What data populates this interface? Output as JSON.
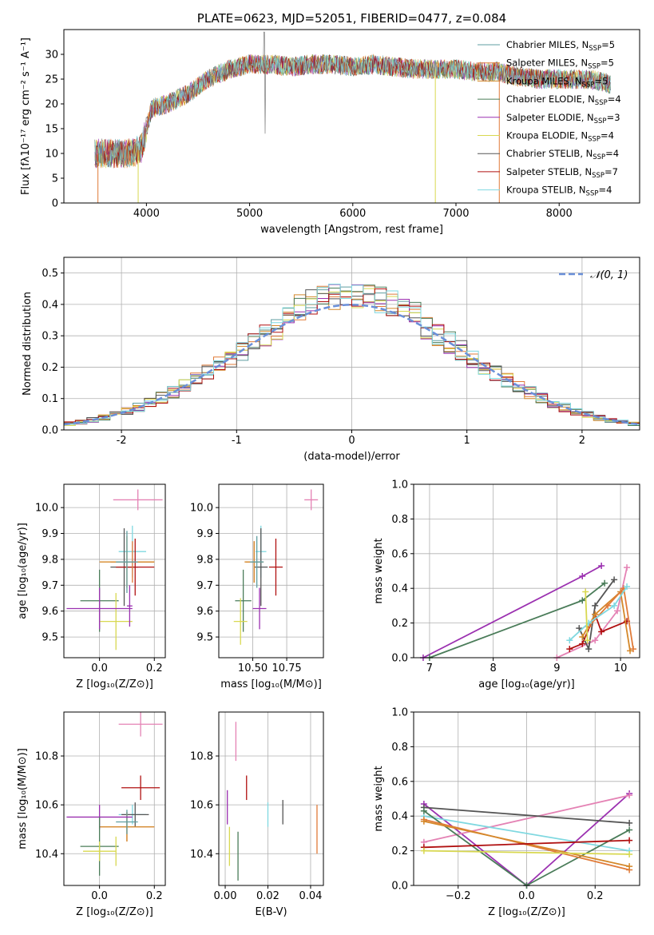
{
  "colors": {
    "c1": "#5f9ea0",
    "c2": "#e07b39",
    "c3": "#d4882a",
    "c4": "#4a7c59",
    "c5": "#9b30b0",
    "c6": "#d8d850",
    "c7": "#555555",
    "c8": "#b01010",
    "c9": "#7fd8e0",
    "c10": "#e482b4",
    "normal": "#6a8fd8"
  },
  "chart_data": [
    {
      "id": "spectrum",
      "type": "line",
      "title": "PLATE=0623, MJD=52051, FIBERID=0477, z=0.084",
      "xlabel": "wavelength [Angstrom, rest frame]",
      "ylabel": "Flux [fλ10⁻¹⁷ erg cm⁻² s⁻¹ A⁻¹]",
      "xlim": [
        3200,
        8780
      ],
      "ylim": [
        0,
        35
      ],
      "xticks": [
        4000,
        5000,
        6000,
        7000,
        8000
      ],
      "yticks": [
        0,
        5,
        10,
        15,
        20,
        25,
        30
      ],
      "grid": false,
      "legend_position": "top-right",
      "series": [
        {
          "name": "Chabrier MILES, N_SSP=5",
          "color_key": "c1"
        },
        {
          "name": "Salpeter MILES, N_SSP=5",
          "color_key": "c2"
        },
        {
          "name": "Kroupa MILES, N_SSP=5",
          "color_key": "c3"
        },
        {
          "name": "Chabrier ELODIE, N_SSP=4",
          "color_key": "c4"
        },
        {
          "name": "Salpeter ELODIE, N_SSP=3",
          "color_key": "c5"
        },
        {
          "name": "Kroupa ELODIE, N_SSP=4",
          "color_key": "c6"
        },
        {
          "name": "Chabrier STELIB, N_SSP=4",
          "color_key": "c7"
        },
        {
          "name": "Salpeter STELIB, N_SSP=7",
          "color_key": "c8"
        },
        {
          "name": "Kroupa STELIB, N_SSP=4",
          "color_key": "c9"
        }
      ],
      "continuum": [
        [
          3500,
          10
        ],
        [
          3700,
          10
        ],
        [
          3850,
          10
        ],
        [
          3950,
          11
        ],
        [
          4050,
          19
        ],
        [
          4200,
          20
        ],
        [
          4400,
          22
        ],
        [
          4600,
          25
        ],
        [
          4800,
          27
        ],
        [
          5000,
          28
        ],
        [
          5200,
          28
        ],
        [
          5400,
          27.5
        ],
        [
          5600,
          28
        ],
        [
          5800,
          28
        ],
        [
          6000,
          27.5
        ],
        [
          6200,
          28
        ],
        [
          6400,
          27.5
        ],
        [
          6600,
          27
        ],
        [
          6800,
          27
        ],
        [
          7000,
          27
        ],
        [
          7200,
          26.5
        ],
        [
          7400,
          26.5
        ],
        [
          7600,
          25.5
        ],
        [
          7800,
          25
        ],
        [
          8000,
          25
        ],
        [
          8300,
          25
        ],
        [
          8500,
          24
        ]
      ],
      "drop_lines_x": [
        3530,
        3920,
        6800,
        7420
      ]
    },
    {
      "id": "residuals",
      "type": "step",
      "xlabel": "(data-model)/error",
      "ylabel": "Normed distribution",
      "xlim": [
        -2.5,
        2.5
      ],
      "ylim": [
        0,
        0.55
      ],
      "xticks": [
        -2,
        -1,
        0,
        1,
        2
      ],
      "yticks": [
        0.0,
        0.1,
        0.2,
        0.3,
        0.4,
        0.5
      ],
      "grid": true,
      "legend": "𝒩(0, 1)",
      "legend_position": "top-right",
      "bin_width": 0.1,
      "bin_start": -2.5,
      "normal_curve": {
        "mean": 0,
        "sigma": 1
      }
    },
    {
      "id": "age_Z",
      "type": "errorbar",
      "xlabel": "Z [log₁₀(Z/Z⊙)]",
      "ylabel": "age  [log₁₀(age/yr)]",
      "xlim": [
        -0.13,
        0.24
      ],
      "ylim": [
        9.42,
        10.09
      ],
      "xticks": [
        0.0,
        0.2
      ],
      "yticks": [
        9.5,
        9.6,
        9.7,
        9.8,
        9.9,
        10.0
      ],
      "grid": true,
      "points": [
        {
          "c": "c10",
          "x": 0.14,
          "xe": 0.09,
          "y": 10.03,
          "ye": 0.04
        },
        {
          "c": "c9",
          "x": 0.12,
          "xe": 0.05,
          "y": 9.83,
          "ye": 0.1
        },
        {
          "c": "c7",
          "x": 0.09,
          "xe": 0.05,
          "y": 9.77,
          "ye": 0.15
        },
        {
          "c": "c8",
          "x": 0.13,
          "xe": 0.07,
          "y": 9.77,
          "ye": 0.11
        },
        {
          "c": "c2",
          "x": 0.12,
          "xe": 0.08,
          "y": 9.79,
          "ye": 0.08
        },
        {
          "c": "c3",
          "x": 0.1,
          "xe": 0.1,
          "y": 9.79,
          "ye": 0.1
        },
        {
          "c": "c1",
          "x": 0.1,
          "xe": 0.04,
          "y": 9.79,
          "ye": 0.12
        },
        {
          "c": "c4",
          "x": 0.0,
          "xe": 0.07,
          "y": 9.64,
          "ye": 0.12
        },
        {
          "c": "c6",
          "x": 0.06,
          "xe": 0.06,
          "y": 9.56,
          "ye": 0.11
        },
        {
          "c": "c5",
          "x": 0.0,
          "xe": 0.12,
          "y": 9.61,
          "ye": 0.08
        },
        {
          "c": "c5",
          "x": 0.11,
          "xe": 0.01,
          "y": 9.62,
          "ye": 0.08
        }
      ]
    },
    {
      "id": "age_mass",
      "type": "errorbar",
      "xlabel": "mass [log₁₀(M/M⊙)]",
      "ylabel": "",
      "xlim": [
        10.25,
        11.02
      ],
      "ylim": [
        9.42,
        10.09
      ],
      "xticks": [
        10.5,
        10.75
      ],
      "yticks": [
        9.5,
        9.6,
        9.7,
        9.8,
        9.9,
        10.0
      ],
      "grid": true,
      "points": [
        {
          "c": "c10",
          "x": 10.93,
          "xe": 0.05,
          "y": 10.03,
          "ye": 0.04
        },
        {
          "c": "c9",
          "x": 10.56,
          "xe": 0.04,
          "y": 9.83,
          "ye": 0.1
        },
        {
          "c": "c7",
          "x": 10.56,
          "xe": 0.05,
          "y": 9.77,
          "ye": 0.15
        },
        {
          "c": "c8",
          "x": 10.67,
          "xe": 0.05,
          "y": 9.77,
          "ye": 0.11
        },
        {
          "c": "c2",
          "x": 10.51,
          "xe": 0.06,
          "y": 9.79,
          "ye": 0.08
        },
        {
          "c": "c3",
          "x": 10.51,
          "xe": 0.07,
          "y": 9.79,
          "ye": 0.08
        },
        {
          "c": "c1",
          "x": 10.53,
          "xe": 0.05,
          "y": 9.79,
          "ye": 0.1
        },
        {
          "c": "c4",
          "x": 10.43,
          "xe": 0.06,
          "y": 9.64,
          "ye": 0.12
        },
        {
          "c": "c6",
          "x": 10.41,
          "xe": 0.05,
          "y": 9.56,
          "ye": 0.09
        },
        {
          "c": "c5",
          "x": 10.55,
          "xe": 0.05,
          "y": 9.61,
          "ye": 0.08
        }
      ]
    },
    {
      "id": "weight_age",
      "type": "line",
      "xlabel": "age  [log₁₀(age/yr)]",
      "ylabel": "mass weight",
      "xlim": [
        6.75,
        10.3
      ],
      "ylim": [
        0,
        1.0
      ],
      "xticks": [
        7,
        8,
        9,
        10
      ],
      "yticks": [
        0.0,
        0.2,
        0.4,
        0.6,
        0.8,
        1.0
      ],
      "grid": true,
      "series": [
        {
          "c": "c5",
          "pts": [
            [
              6.9,
              0
            ],
            [
              9.4,
              0.47
            ],
            [
              9.7,
              0.53
            ]
          ]
        },
        {
          "c": "c4",
          "pts": [
            [
              7.0,
              0
            ],
            [
              9.4,
              0.33
            ],
            [
              9.75,
              0.43
            ]
          ]
        },
        {
          "c": "c10",
          "pts": [
            [
              9.0,
              0
            ],
            [
              9.6,
              0.1
            ],
            [
              9.95,
              0.27
            ],
            [
              10.1,
              0.52
            ]
          ]
        },
        {
          "c": "c7",
          "pts": [
            [
              9.35,
              0.17
            ],
            [
              9.5,
              0.05
            ],
            [
              9.6,
              0.3
            ],
            [
              9.9,
              0.45
            ]
          ]
        },
        {
          "c": "c8",
          "pts": [
            [
              9.2,
              0.05
            ],
            [
              9.4,
              0.08
            ],
            [
              9.6,
              0.25
            ],
            [
              9.7,
              0.15
            ],
            [
              10.1,
              0.21
            ]
          ]
        },
        {
          "c": "c3",
          "pts": [
            [
              9.4,
              0.12
            ],
            [
              9.6,
              0.25
            ],
            [
              10.0,
              0.38
            ],
            [
              10.15,
              0.04
            ]
          ]
        },
        {
          "c": "c2",
          "pts": [
            [
              9.5,
              0.18
            ],
            [
              9.8,
              0.3
            ],
            [
              10.05,
              0.4
            ],
            [
              10.2,
              0.05
            ]
          ]
        },
        {
          "c": "c9",
          "pts": [
            [
              9.2,
              0.1
            ],
            [
              9.5,
              0.2
            ],
            [
              9.9,
              0.3
            ],
            [
              10.1,
              0.41
            ]
          ]
        },
        {
          "c": "c6",
          "pts": [
            [
              9.45,
              0.38
            ],
            [
              9.48,
              0.1
            ]
          ]
        }
      ]
    },
    {
      "id": "mass_Z",
      "type": "errorbar",
      "xlabel": "Z [log₁₀(Z/Z⊙)]",
      "ylabel": "mass [log₁₀(M/M⊙)]",
      "xlim": [
        -0.13,
        0.24
      ],
      "ylim": [
        10.27,
        10.98
      ],
      "xticks": [
        0.0,
        0.2
      ],
      "yticks": [
        10.4,
        10.6,
        10.8
      ],
      "grid": true,
      "points": [
        {
          "c": "c10",
          "x": 0.15,
          "xe": 0.08,
          "y": 10.93,
          "ye": 0.05
        },
        {
          "c": "c8",
          "x": 0.15,
          "xe": 0.07,
          "y": 10.67,
          "ye": 0.05
        },
        {
          "c": "c9",
          "x": 0.12,
          "xe": 0.05,
          "y": 10.56,
          "ye": 0.04
        },
        {
          "c": "c7",
          "x": 0.13,
          "xe": 0.05,
          "y": 10.56,
          "ye": 0.05
        },
        {
          "c": "c2",
          "x": 0.1,
          "xe": 0.1,
          "y": 10.51,
          "ye": 0.06
        },
        {
          "c": "c3",
          "x": 0.1,
          "xe": 0.1,
          "y": 10.51,
          "ye": 0.06
        },
        {
          "c": "c1",
          "x": 0.1,
          "xe": 0.04,
          "y": 10.53,
          "ye": 0.05
        },
        {
          "c": "c5",
          "x": 0.0,
          "xe": 0.12,
          "y": 10.55,
          "ye": 0.05
        },
        {
          "c": "c4",
          "x": 0.0,
          "xe": 0.07,
          "y": 10.43,
          "ye": 0.12
        },
        {
          "c": "c6",
          "x": 0.0,
          "xe": 0.06,
          "y": 10.41,
          "ye": 0.04
        },
        {
          "c": "c6",
          "x": 0.06,
          "xe": 0.0,
          "y": 10.41,
          "ye": 0.06
        }
      ]
    },
    {
      "id": "mass_EBV",
      "type": "errorbar",
      "xlabel": "E(B-V)",
      "ylabel": "",
      "xlim": [
        -0.003,
        0.046
      ],
      "ylim": [
        10.27,
        10.98
      ],
      "xticks": [
        0.0,
        0.02,
        0.04
      ],
      "yticks": [
        10.4,
        10.6,
        10.8
      ],
      "grid": true,
      "points": [
        {
          "c": "c10",
          "x": 0.005,
          "xe": 0,
          "y": 10.86,
          "ye": 0.08
        },
        {
          "c": "c8",
          "x": 0.01,
          "xe": 0,
          "y": 10.67,
          "ye": 0.05
        },
        {
          "c": "c9",
          "x": 0.02,
          "xe": 0,
          "y": 10.56,
          "ye": 0.05
        },
        {
          "c": "c7",
          "x": 0.027,
          "xe": 0,
          "y": 10.57,
          "ye": 0.05
        },
        {
          "c": "c2",
          "x": 0.043,
          "xe": 0,
          "y": 10.5,
          "ye": 0.1
        },
        {
          "c": "c5",
          "x": 0.001,
          "xe": 0,
          "y": 10.59,
          "ye": 0.07
        },
        {
          "c": "c4",
          "x": 0.006,
          "xe": 0,
          "y": 10.39,
          "ye": 0.1
        },
        {
          "c": "c6",
          "x": 0.002,
          "xe": 0,
          "y": 10.43,
          "ye": 0.08
        }
      ]
    },
    {
      "id": "weight_Z",
      "type": "line",
      "xlabel": "Z [log₁₀(Z/Z⊙)]",
      "ylabel": "mass weight",
      "xlim": [
        -0.33,
        0.33
      ],
      "ylim": [
        0,
        1.0
      ],
      "xticks": [
        -0.2,
        0.0,
        0.2
      ],
      "yticks": [
        0.0,
        0.2,
        0.4,
        0.6,
        0.8,
        1.0
      ],
      "grid": true,
      "series": [
        {
          "c": "c5",
          "pts": [
            [
              -0.3,
              0.47
            ],
            [
              0.0,
              0.0
            ],
            [
              0.3,
              0.53
            ]
          ]
        },
        {
          "c": "c10",
          "pts": [
            [
              -0.3,
              0.25
            ],
            [
              0.3,
              0.52
            ]
          ]
        },
        {
          "c": "c7",
          "pts": [
            [
              -0.3,
              0.45
            ],
            [
              0.3,
              0.36
            ]
          ]
        },
        {
          "c": "c9",
          "pts": [
            [
              -0.3,
              0.4
            ],
            [
              0.3,
              0.2
            ]
          ]
        },
        {
          "c": "c4",
          "pts": [
            [
              -0.3,
              0.43
            ],
            [
              0.0,
              0.0
            ],
            [
              0.3,
              0.32
            ]
          ]
        },
        {
          "c": "c2",
          "pts": [
            [
              -0.3,
              0.38
            ],
            [
              0.3,
              0.09
            ]
          ]
        },
        {
          "c": "c3",
          "pts": [
            [
              -0.3,
              0.37
            ],
            [
              0.3,
              0.11
            ]
          ]
        },
        {
          "c": "c8",
          "pts": [
            [
              -0.3,
              0.22
            ],
            [
              0.3,
              0.26
            ]
          ]
        },
        {
          "c": "c6",
          "pts": [
            [
              -0.3,
              0.2
            ],
            [
              0.3,
              0.18
            ]
          ]
        }
      ]
    }
  ]
}
